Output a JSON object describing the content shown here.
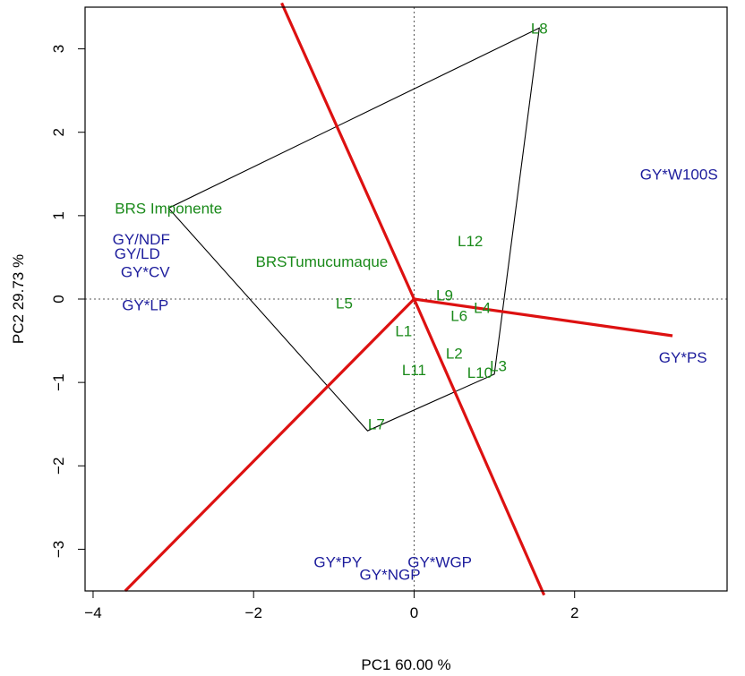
{
  "chart_data": {
    "type": "scatter",
    "title": "",
    "xlabel": "PC1 60.00 %",
    "ylabel": "PC2 29.73 %",
    "xlim": [
      -4.1,
      3.9
    ],
    "ylim": [
      -3.5,
      3.5
    ],
    "xticks": [
      -4,
      -2,
      0,
      2
    ],
    "yticks": [
      -3,
      -2,
      -1,
      0,
      1,
      2,
      3
    ],
    "grid": false,
    "colors": {
      "genotype": "#1a8a1a",
      "environment": "#1c1c9c",
      "sector_line": "#dd1111",
      "hull": "#000000",
      "reference": "#555555"
    },
    "genotypes": [
      {
        "label": "L8",
        "x": 1.56,
        "y": 3.25
      },
      {
        "label": "BRS Imponente",
        "x": -3.06,
        "y": 1.09
      },
      {
        "label": "BRSTumucumaque",
        "x": -1.15,
        "y": 0.45
      },
      {
        "label": "L12",
        "x": 0.7,
        "y": 0.7
      },
      {
        "label": "L9",
        "x": 0.38,
        "y": 0.05
      },
      {
        "label": "L5",
        "x": -0.87,
        "y": -0.05
      },
      {
        "label": "L4",
        "x": 0.85,
        "y": -0.1
      },
      {
        "label": "L6",
        "x": 0.56,
        "y": -0.2
      },
      {
        "label": "L1",
        "x": -0.13,
        "y": -0.38
      },
      {
        "label": "L2",
        "x": 0.5,
        "y": -0.65
      },
      {
        "label": "L3",
        "x": 1.05,
        "y": -0.8
      },
      {
        "label": "L11",
        "x": 0.0,
        "y": -0.85
      },
      {
        "label": "L10",
        "x": 0.82,
        "y": -0.88
      },
      {
        "label": "L7",
        "x": -0.47,
        "y": -1.5
      }
    ],
    "environments": [
      {
        "label": "GY*W100S",
        "x": 3.3,
        "y": 1.5
      },
      {
        "label": "GY/NDF",
        "x": -3.4,
        "y": 0.72
      },
      {
        "label": "GY/LD",
        "x": -3.45,
        "y": 0.55
      },
      {
        "label": "GY*CV",
        "x": -3.35,
        "y": 0.33
      },
      {
        "label": "GY*LP",
        "x": -3.35,
        "y": -0.07
      },
      {
        "label": "GY*PS",
        "x": 3.35,
        "y": -0.7
      },
      {
        "label": "GY*PY",
        "x": -0.95,
        "y": -3.15
      },
      {
        "label": "GY*WGP",
        "x": 0.32,
        "y": -3.15
      },
      {
        "label": "GY*NGP",
        "x": -0.3,
        "y": -3.3
      }
    ],
    "hull": [
      [
        1.56,
        3.25
      ],
      [
        -3.06,
        1.09
      ],
      [
        -0.58,
        -1.58
      ],
      [
        1.0,
        -0.9
      ]
    ],
    "sector_lines": [
      {
        "x2": -1.65,
        "y2": 3.55
      },
      {
        "x2": 3.22,
        "y2": -0.44
      },
      {
        "x2": 1.62,
        "y2": -3.55
      },
      {
        "x2": -3.6,
        "y2": -3.5
      }
    ],
    "origin": [
      0,
      0
    ]
  }
}
